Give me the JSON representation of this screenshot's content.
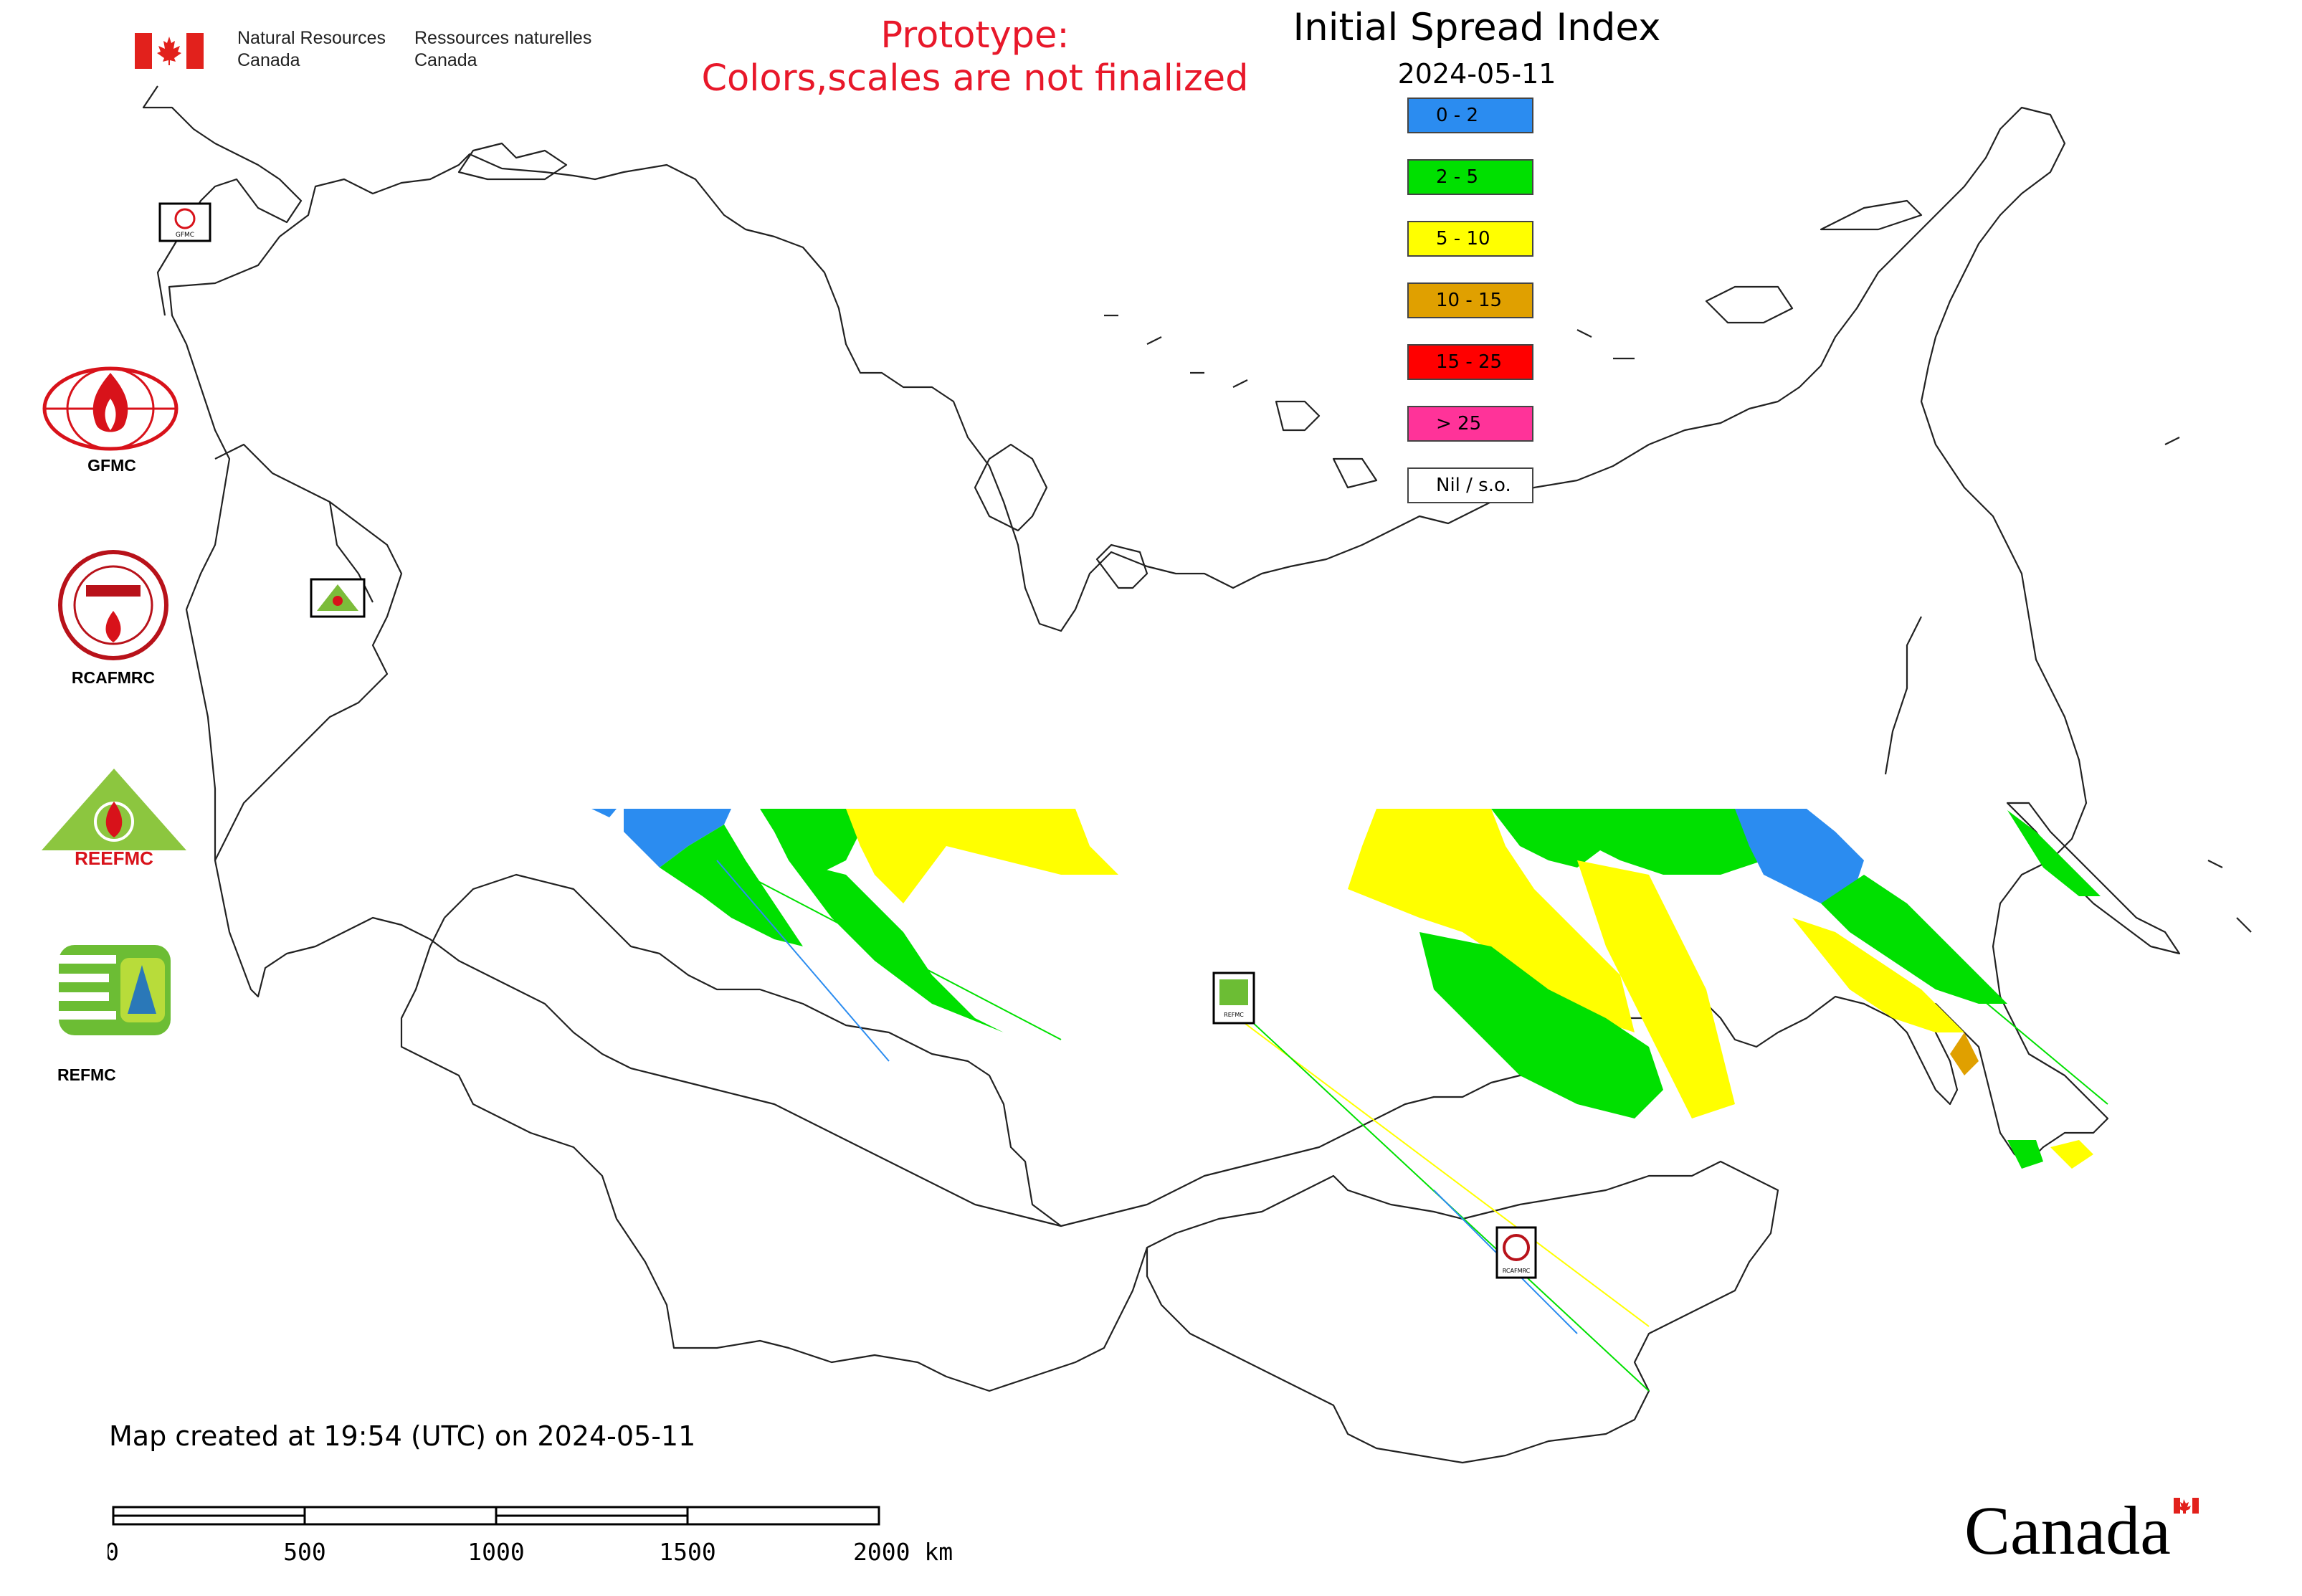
{
  "header": {
    "nrcan_en_line1": "Natural Resources",
    "nrcan_en_line2": "Canada",
    "nrcan_fr_line1": "Ressources naturelles",
    "nrcan_fr_line2": "Canada",
    "flag_color": "#e2211c"
  },
  "banner": {
    "line1": "Prototype:",
    "line2": "Colors,scales are not finalized",
    "color": "#e8182a"
  },
  "map_title": "Initial Spread Index",
  "map_date": "2024-05-11",
  "legend": [
    {
      "label": "0 - 2",
      "color": "#2b8cf0"
    },
    {
      "label": "2 - 5",
      "color": "#00e000"
    },
    {
      "label": "5 - 10",
      "color": "#ffff00"
    },
    {
      "label": "10 - 15",
      "color": "#e0a000"
    },
    {
      "label": "15 - 25",
      "color": "#ff0000"
    },
    {
      "label": "> 25",
      "color": "#ff3399"
    },
    {
      "label": "Nil / s.o.",
      "color": "#ffffff"
    }
  ],
  "logos": [
    {
      "caption": "GFMC",
      "icon": "gfmc-flame-globe-icon"
    },
    {
      "caption": "RCAFMRC",
      "icon": "rcafmrc-seal-icon"
    },
    {
      "caption": "",
      "icon": "reefmc-triangle-icon",
      "wordmark": "REEFMC"
    },
    {
      "caption": "REFMC",
      "icon": "refmc-sigma-icon"
    }
  ],
  "map_markers": [
    {
      "label": "GFMC"
    },
    {
      "label": "REEFMC"
    },
    {
      "label": "REFMC"
    },
    {
      "label": "RCAFMRC"
    }
  ],
  "footer": {
    "created": "Map created at 19:54 (UTC) on 2024-05-11",
    "scale_ticks": [
      "0",
      "500",
      "1000",
      "1500",
      "2000 km"
    ],
    "wordmark": "Canada"
  }
}
